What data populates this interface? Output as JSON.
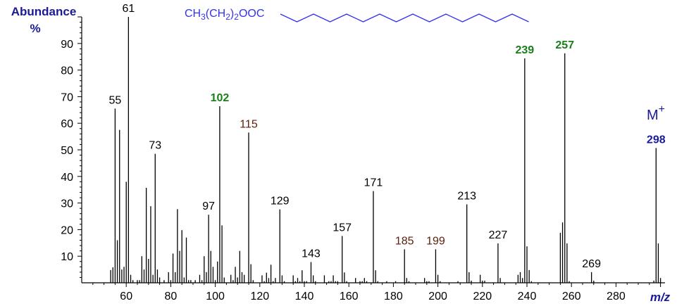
{
  "chart_data": {
    "type": "bar",
    "title": "",
    "xlabel": "m/z",
    "ylabel": "Abundance",
    "ylabel_unit": "%",
    "xlim": [
      40,
      302
    ],
    "ylim": [
      0,
      100
    ],
    "x_ticks": [
      60,
      80,
      100,
      120,
      140,
      160,
      180,
      200,
      220,
      240,
      260,
      280
    ],
    "y_ticks": [
      10,
      20,
      30,
      40,
      50,
      60,
      70,
      80,
      90
    ],
    "grid": false,
    "structure_formula": "CH3(CH2)2OOC",
    "molecular_ion_label": "M",
    "molecular_ion_superscript": "+",
    "colors": {
      "axis": "#000000",
      "bars": "#000000",
      "structure": "#3333ee",
      "axis_title": "#1a1a99",
      "green_label": "#1a7f1a",
      "brown_label": "#5a1e0a",
      "blue_label": "#1a1aa0"
    },
    "peaks": [
      [
        53,
        4.8
      ],
      [
        54,
        5.8
      ],
      [
        55,
        65.5
      ],
      [
        56,
        16
      ],
      [
        57,
        57.5
      ],
      [
        58,
        5
      ],
      [
        59,
        6
      ],
      [
        60,
        38
      ],
      [
        61,
        100
      ],
      [
        62,
        3
      ],
      [
        63,
        1
      ],
      [
        65,
        1
      ],
      [
        66,
        1
      ],
      [
        67,
        10
      ],
      [
        68,
        5
      ],
      [
        69,
        35.7
      ],
      [
        70,
        9
      ],
      [
        71,
        28.8
      ],
      [
        72,
        3
      ],
      [
        73,
        48.5
      ],
      [
        74,
        5
      ],
      [
        75,
        2
      ],
      [
        77,
        1
      ],
      [
        79,
        4
      ],
      [
        80,
        1
      ],
      [
        81,
        11
      ],
      [
        82,
        4
      ],
      [
        83,
        27.7
      ],
      [
        84,
        12
      ],
      [
        85,
        19.8
      ],
      [
        86,
        2
      ],
      [
        87,
        17
      ],
      [
        88,
        1
      ],
      [
        89,
        1
      ],
      [
        91,
        1
      ],
      [
        93,
        3
      ],
      [
        94,
        1
      ],
      [
        95,
        10
      ],
      [
        96,
        4
      ],
      [
        97,
        25.6
      ],
      [
        98,
        12
      ],
      [
        99,
        6
      ],
      [
        100,
        1
      ],
      [
        101,
        8
      ],
      [
        102,
        66.4
      ],
      [
        103,
        21.6
      ],
      [
        104,
        2
      ],
      [
        107,
        3
      ],
      [
        108,
        1
      ],
      [
        109,
        6
      ],
      [
        110,
        2
      ],
      [
        111,
        12
      ],
      [
        112,
        4
      ],
      [
        113,
        3
      ],
      [
        115,
        56.5
      ],
      [
        116,
        7
      ],
      [
        117,
        1
      ],
      [
        121,
        2.8
      ],
      [
        122,
        0.6
      ],
      [
        123,
        3.8
      ],
      [
        124,
        1.8
      ],
      [
        125,
        6.8
      ],
      [
        126,
        0.6
      ],
      [
        127,
        1.8
      ],
      [
        129,
        27.6
      ],
      [
        130,
        2.8
      ],
      [
        131,
        0.6
      ],
      [
        135,
        2.8
      ],
      [
        136,
        0.6
      ],
      [
        137,
        1.8
      ],
      [
        138,
        0.6
      ],
      [
        139,
        4.7
      ],
      [
        140,
        0.6
      ],
      [
        141,
        0.6
      ],
      [
        143,
        7.8
      ],
      [
        144,
        2.8
      ],
      [
        145,
        0.6
      ],
      [
        149,
        2.8
      ],
      [
        151,
        0.6
      ],
      [
        152,
        0.6
      ],
      [
        153,
        2.8
      ],
      [
        154,
        0.6
      ],
      [
        155,
        0.6
      ],
      [
        157,
        17.6
      ],
      [
        158,
        3.9
      ],
      [
        159,
        0.6
      ],
      [
        163,
        1.8
      ],
      [
        165,
        0.6
      ],
      [
        166,
        0.6
      ],
      [
        167,
        1.8
      ],
      [
        168,
        0.6
      ],
      [
        171,
        34.5
      ],
      [
        172,
        4.7
      ],
      [
        173,
        0.6
      ],
      [
        177,
        0.6
      ],
      [
        181,
        0.6
      ],
      [
        185,
        12.6
      ],
      [
        186,
        1.8
      ],
      [
        187,
        0.6
      ],
      [
        194,
        1.8
      ],
      [
        195,
        0.6
      ],
      [
        196,
        0.6
      ],
      [
        199,
        12.6
      ],
      [
        200,
        3
      ],
      [
        201,
        0.6
      ],
      [
        209,
        0.6
      ],
      [
        213,
        29.5
      ],
      [
        214,
        4
      ],
      [
        215,
        0.8
      ],
      [
        219,
        3
      ],
      [
        220,
        0.8
      ],
      [
        221,
        0.8
      ],
      [
        227,
        14.8
      ],
      [
        228,
        1.8
      ],
      [
        236,
        3
      ],
      [
        237,
        4
      ],
      [
        238,
        1.8
      ],
      [
        239,
        84.4
      ],
      [
        240,
        13.7
      ],
      [
        241,
        4.8
      ],
      [
        242,
        0.6
      ],
      [
        255,
        18.8
      ],
      [
        256,
        22.7
      ],
      [
        257,
        86.3
      ],
      [
        258,
        14.8
      ],
      [
        259,
        0.6
      ],
      [
        269,
        4
      ],
      [
        270,
        0.8
      ],
      [
        297,
        0.8
      ],
      [
        298,
        50.7
      ],
      [
        299,
        14.8
      ],
      [
        300,
        1.8
      ]
    ],
    "annotations": [
      {
        "mz": 55,
        "text": "55",
        "color": "black",
        "bold": false
      },
      {
        "mz": 61,
        "text": "61",
        "color": "black",
        "bold": false
      },
      {
        "mz": 73,
        "text": "73",
        "color": "black",
        "bold": false
      },
      {
        "mz": 97,
        "text": "97",
        "color": "black",
        "bold": false
      },
      {
        "mz": 102,
        "text": "102",
        "color": "green",
        "bold": true
      },
      {
        "mz": 115,
        "text": "115",
        "color": "brown",
        "bold": false
      },
      {
        "mz": 129,
        "text": "129",
        "color": "black",
        "bold": false
      },
      {
        "mz": 143,
        "text": "143",
        "color": "black",
        "bold": false
      },
      {
        "mz": 157,
        "text": "157",
        "color": "black",
        "bold": false
      },
      {
        "mz": 171,
        "text": "171",
        "color": "black",
        "bold": false
      },
      {
        "mz": 185,
        "text": "185",
        "color": "brown",
        "bold": false
      },
      {
        "mz": 199,
        "text": "199",
        "color": "brown",
        "bold": false
      },
      {
        "mz": 213,
        "text": "213",
        "color": "black",
        "bold": false
      },
      {
        "mz": 227,
        "text": "227",
        "color": "black",
        "bold": false
      },
      {
        "mz": 239,
        "text": "239",
        "color": "green",
        "bold": true
      },
      {
        "mz": 257,
        "text": "257",
        "color": "green",
        "bold": true
      },
      {
        "mz": 269,
        "text": "269",
        "color": "black",
        "bold": false
      },
      {
        "mz": 298,
        "text": "298",
        "color": "blue",
        "bold": true
      }
    ]
  }
}
